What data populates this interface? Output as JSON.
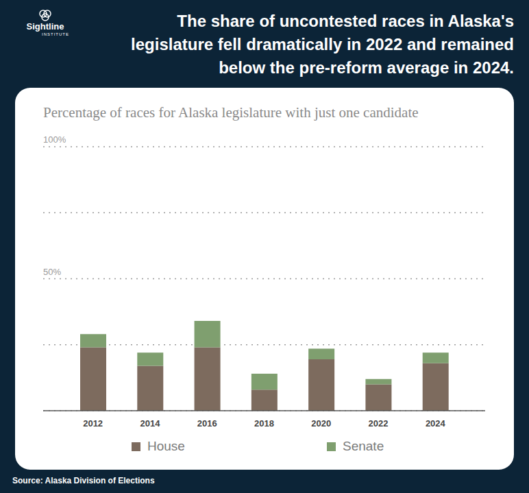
{
  "chart_data": {
    "type": "bar",
    "title": "The share of uncontested races in Alaska's legislature fell dramatically in 2022 and remained below the pre-reform average in 2024.",
    "subtitle": "Percentage of races for Alaska legislature with just one candidate",
    "source": "Source: Alaska Division of Elections",
    "logo": [
      "Sightline",
      "INSTITUTE"
    ],
    "categories": [
      "2012",
      "2014",
      "2016",
      "2018",
      "2020",
      "2022",
      "2024"
    ],
    "series": [
      {
        "name": "House",
        "color": "#7d6b5e",
        "values": [
          24,
          17,
          24,
          8,
          19.5,
          10,
          18
        ]
      },
      {
        "name": "Senate",
        "color": "#7f9f6f",
        "values": [
          5,
          5,
          10,
          6,
          4,
          2,
          4
        ]
      }
    ],
    "stacked": true,
    "ylim": [
      0,
      100
    ],
    "yticks": [
      {
        "value": 0,
        "label": null
      },
      {
        "value": 25,
        "label": null
      },
      {
        "value": 50,
        "label": "50%"
      },
      {
        "value": 75,
        "label": null
      },
      {
        "value": 100,
        "label": "100%"
      }
    ],
    "grid": true,
    "legend": "bottom"
  }
}
